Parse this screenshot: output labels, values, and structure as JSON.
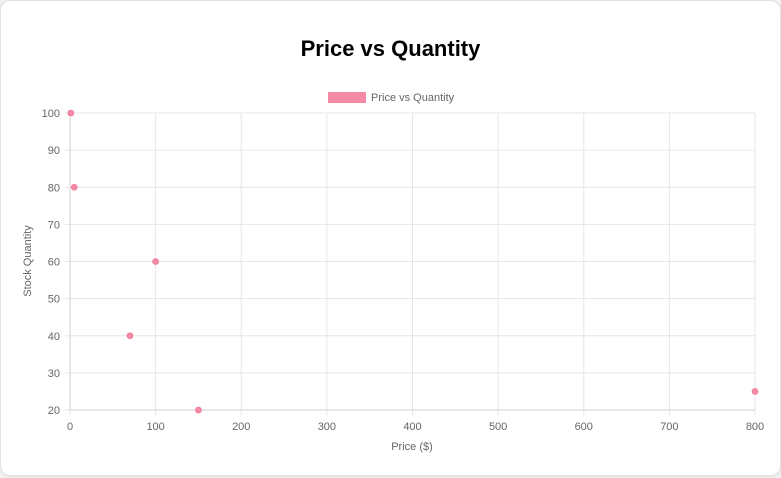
{
  "chart_data": {
    "type": "scatter",
    "title": "Price vs Quantity",
    "xlabel": "Price ($)",
    "ylabel": "Stock Quantity",
    "xlim": [
      0,
      800
    ],
    "ylim": [
      20,
      100
    ],
    "xticks": [
      0,
      100,
      200,
      300,
      400,
      500,
      600,
      700,
      800
    ],
    "yticks": [
      20,
      30,
      40,
      50,
      60,
      70,
      80,
      90,
      100
    ],
    "grid": true,
    "legend_position": "top",
    "series": [
      {
        "name": "Price vs Quantity",
        "color": "#f48aa5",
        "points": [
          {
            "x": 1,
            "y": 100
          },
          {
            "x": 5,
            "y": 80
          },
          {
            "x": 100,
            "y": 60
          },
          {
            "x": 70,
            "y": 40
          },
          {
            "x": 150,
            "y": 20
          },
          {
            "x": 800,
            "y": 25
          }
        ]
      }
    ]
  }
}
